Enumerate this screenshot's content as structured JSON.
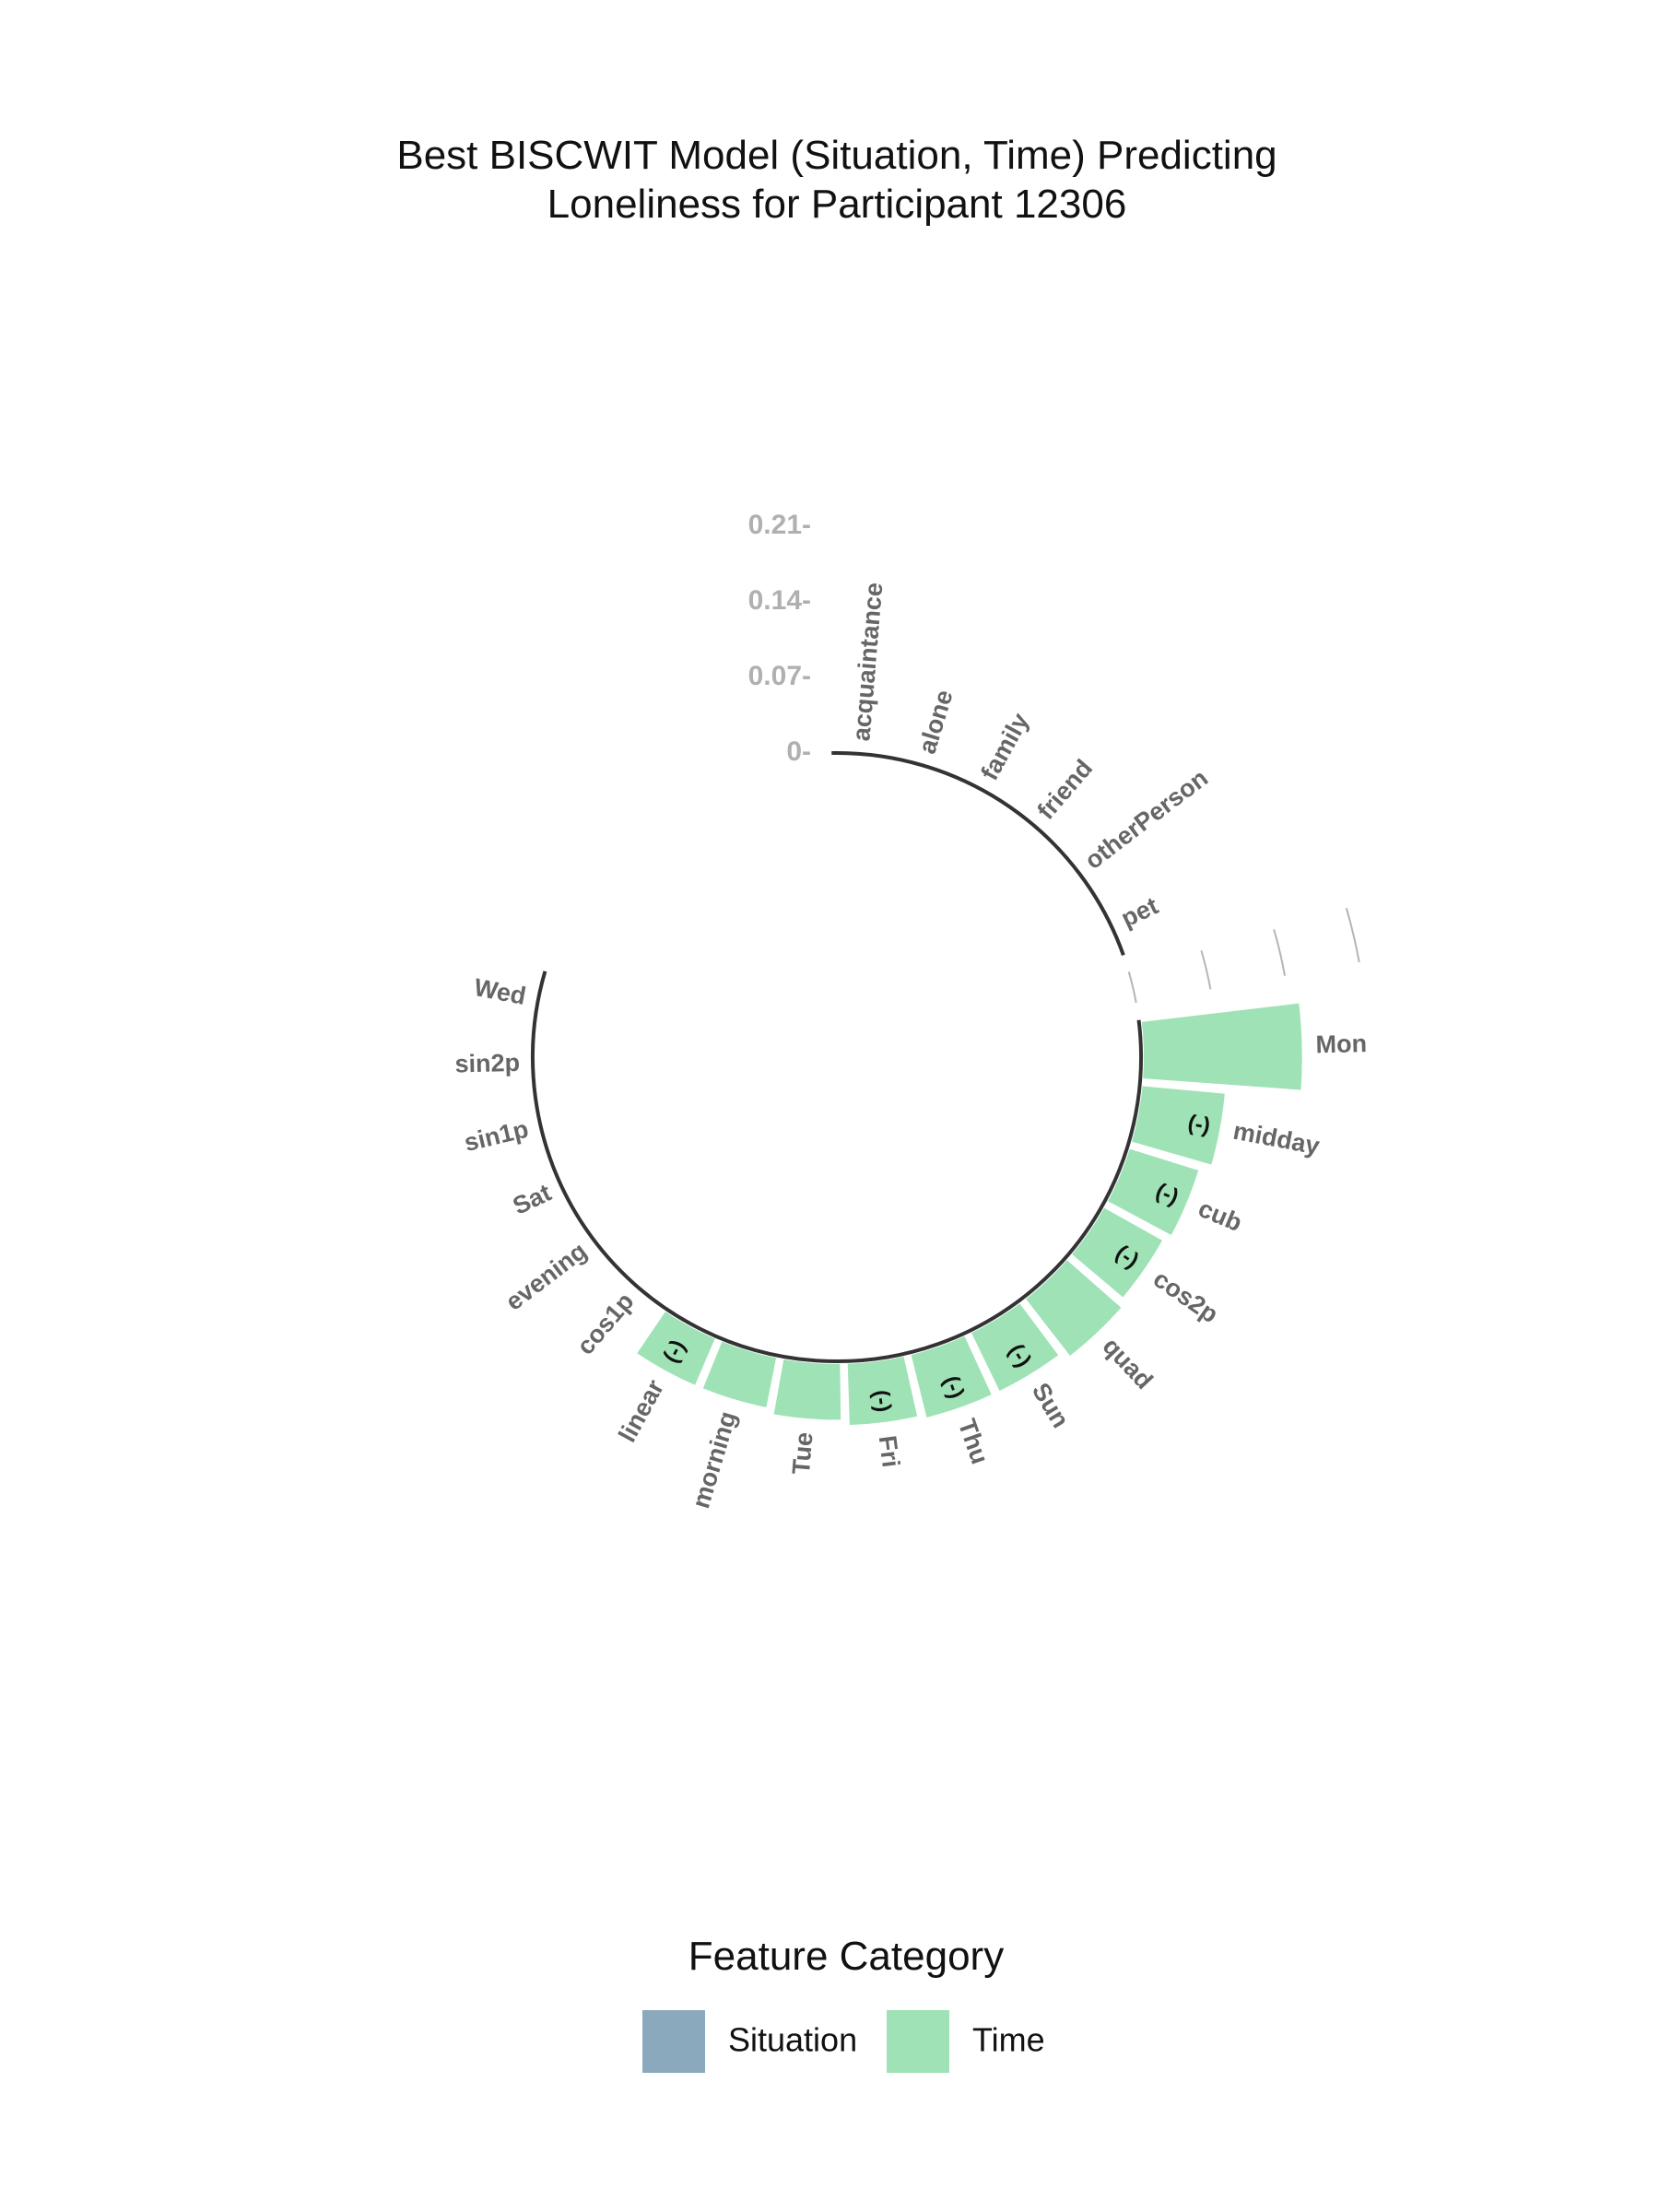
{
  "chart_data": {
    "type": "bar",
    "coordinate_system": "polar",
    "title": "Best BISCWIT Model (Situation, Time) Predicting\nLoneliness for Participant 12306",
    "radial_ticks": [
      "0-",
      "0.07-",
      "0.14-",
      "0.21-"
    ],
    "radial_tick_values": [
      0,
      0.07,
      0.14,
      0.21
    ],
    "ylim": [
      0,
      0.21
    ],
    "legend": {
      "title": "Feature Category",
      "position": "bottom",
      "entries": [
        {
          "label": "Situation",
          "color": "#8aa9bd"
        },
        {
          "label": "Time",
          "color": "#9fe2b6"
        }
      ]
    },
    "categories": [
      "acquaintance",
      "alone",
      "family",
      "friend",
      "otherPerson",
      "pet",
      "Mon",
      "midday",
      "cub",
      "cos2p",
      "quad",
      "Sun",
      "Thu",
      "Fri",
      "Tue",
      "morning",
      "linear",
      "cos1p",
      "evening",
      "Sat",
      "sin1p",
      "sin2p",
      "Wed"
    ],
    "groups": [
      {
        "name": "Situation",
        "members": [
          "acquaintance",
          "alone",
          "family",
          "friend",
          "otherPerson",
          "pet"
        ]
      },
      {
        "name": "Time",
        "members": [
          "Mon",
          "midday",
          "cub",
          "cos2p",
          "quad",
          "Sun",
          "Thu",
          "Fri",
          "Tue",
          "morning",
          "linear",
          "cos1p",
          "evening",
          "Sat",
          "sin1p",
          "sin2p",
          "Wed"
        ]
      }
    ],
    "series": [
      {
        "name": "Time",
        "values": [
          0,
          0,
          0,
          0,
          0,
          0,
          0.15,
          0.08,
          0.07,
          0.065,
          0.07,
          0.063,
          0.063,
          0.06,
          0.055,
          0.05,
          0.05,
          0,
          0,
          0,
          0,
          0,
          0
        ],
        "negative": [
          false,
          false,
          false,
          false,
          false,
          false,
          false,
          true,
          true,
          true,
          false,
          true,
          true,
          true,
          false,
          false,
          true,
          false,
          false,
          false,
          false,
          false,
          false
        ]
      }
    ],
    "negative_marker": "(-)"
  }
}
